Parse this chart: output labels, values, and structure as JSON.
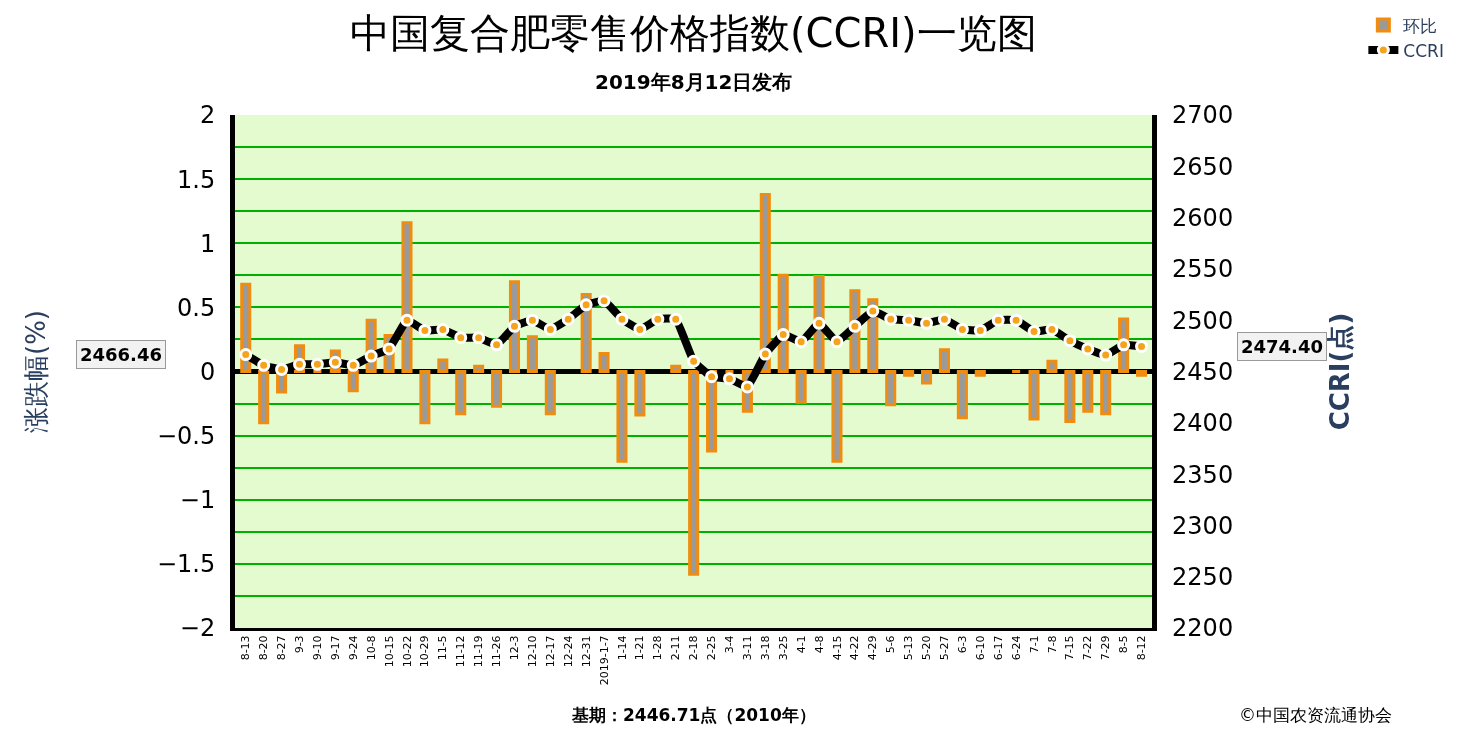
{
  "chart_data": {
    "type": "bar",
    "title": "中国复合肥零售价格指数(CCRI)一览图",
    "subtitle": "2019年8月12日发布",
    "ylabel": "涨跌幅(%)",
    "y2label": "CCRI(点)",
    "categories": [
      "8-13",
      "8-20",
      "8-27",
      "9-3",
      "9-10",
      "9-17",
      "9-24",
      "10-8",
      "10-15",
      "10-22",
      "10-29",
      "11-5",
      "11-12",
      "11-19",
      "11-26",
      "12-3",
      "12-10",
      "12-17",
      "12-24",
      "12-31",
      "2019-1-7",
      "1-14",
      "1-21",
      "1-28",
      "2-11",
      "2-18",
      "2-25",
      "3-4",
      "3-11",
      "3-18",
      "3-25",
      "4-1",
      "4-8",
      "4-15",
      "4-22",
      "4-29",
      "5-6",
      "5-13",
      "5-20",
      "5-27",
      "6-3",
      "6-10",
      "6-17",
      "6-24",
      "7-1",
      "7-8",
      "7-15",
      "7-22",
      "7-29",
      "8-5",
      "8-12"
    ],
    "series": [
      {
        "name": "环比",
        "color": "#f08c10",
        "values": [
          0.68,
          -0.4,
          -0.16,
          0.2,
          0,
          0.16,
          -0.15,
          0.4,
          0.28,
          1.16,
          -0.4,
          0.09,
          -0.33,
          0.04,
          -0.27,
          0.7,
          0.27,
          -0.33,
          null,
          0.6,
          0.14,
          -0.7,
          -0.34,
          null,
          0.04,
          -1.58,
          -0.62,
          0,
          -0.31,
          1.38,
          0.75,
          -0.24,
          0.74,
          -0.7,
          0.63,
          0.56,
          -0.26,
          -0.03,
          -0.09,
          0.17,
          -0.36,
          -0.03,
          null,
          0,
          -0.37,
          0.08,
          -0.39,
          -0.31,
          -0.33,
          0.41,
          -0.03
        ]
      },
      {
        "name": "CCRI",
        "type": "line",
        "axis": "y2",
        "color": "#000000",
        "marker": "circle",
        "values": [
          2466.46,
          2456,
          2452,
          2457,
          2457,
          2459,
          2456,
          2465,
          2472,
          2500,
          2490,
          2491,
          2483,
          2483,
          2476,
          2494,
          2500,
          2491,
          2501,
          2515,
          2519,
          2501,
          2491,
          2501,
          2501,
          2460,
          2445,
          2443,
          2435,
          2467,
          2486,
          2479,
          2497,
          2479,
          2494,
          2509,
          2501,
          2500,
          2497,
          2501,
          2491,
          2490,
          2500,
          2500,
          2489,
          2491,
          2480,
          2472,
          2466,
          2476,
          2474.4
        ]
      }
    ],
    "ylim": [
      -2,
      2
    ],
    "yticks": [
      -2,
      -1.5,
      -1,
      -0.5,
      0,
      0.5,
      1,
      1.5,
      2
    ],
    "y2lim": [
      2200,
      2700
    ],
    "y2ticks": [
      2200,
      2250,
      2300,
      2350,
      2400,
      2450,
      2500,
      2550,
      2600,
      2650,
      2700
    ],
    "grid": "y",
    "legend": "top right",
    "annotations": [
      "2466.46",
      "2474.40",
      "基期：2446.71点（2010年）",
      "©中国农资流通协会"
    ]
  }
}
